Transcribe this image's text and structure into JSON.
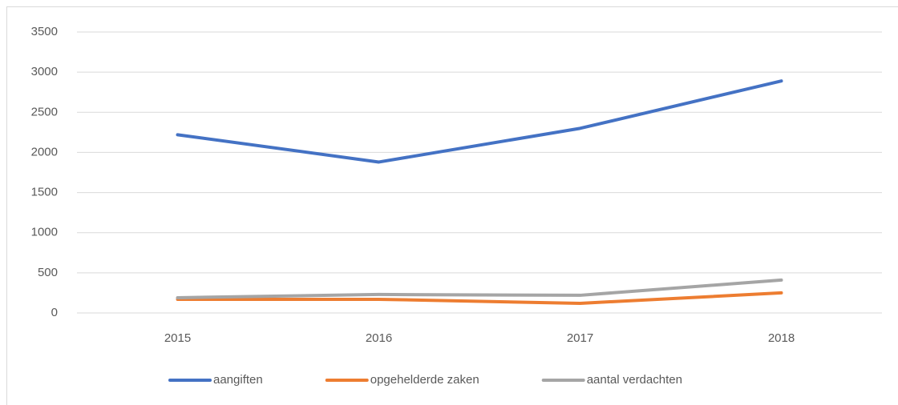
{
  "chart_data": {
    "type": "line",
    "categories": [
      "2015",
      "2016",
      "2017",
      "2018"
    ],
    "series": [
      {
        "name": "aangiften",
        "color": "#4472c4",
        "values": [
          2220,
          1880,
          2300,
          2890
        ]
      },
      {
        "name": "opgehelderde zaken",
        "color": "#ed7d31",
        "values": [
          170,
          170,
          120,
          250
        ]
      },
      {
        "name": "aantal verdachten",
        "color": "#a5a5a5",
        "values": [
          190,
          230,
          220,
          410
        ]
      }
    ],
    "ylim": [
      0,
      3500
    ],
    "yticks": [
      0,
      500,
      1000,
      1500,
      2000,
      2500,
      3000,
      3500
    ],
    "grid": true,
    "legend": "bottom"
  }
}
